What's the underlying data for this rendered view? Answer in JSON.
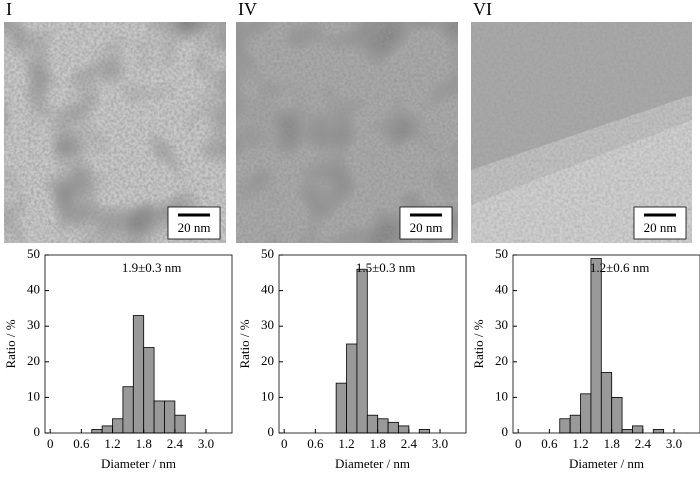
{
  "panels": [
    {
      "label": "I",
      "scale_bar": "20 nm"
    },
    {
      "label": "IV",
      "scale_bar": "20 nm"
    },
    {
      "label": "VI",
      "scale_bar": "20 nm"
    }
  ],
  "chart_data": [
    {
      "type": "histogram",
      "annotation": "1.9±0.3 nm",
      "xlabel": "Diameter / nm",
      "ylabel": "Ratio / %",
      "color": "#999999",
      "bins": [
        0.8,
        1.0,
        1.2,
        1.4,
        1.6,
        1.8,
        2.0,
        2.2,
        2.4,
        2.6
      ],
      "counts": [
        1,
        2,
        4,
        13,
        33,
        24,
        9,
        9,
        5
      ],
      "xlim": [
        -0.1,
        3.5
      ],
      "ylim": [
        0,
        50
      ],
      "xticks": [
        0,
        0.6,
        1.2,
        1.8,
        2.4,
        {
          "value": 3,
          "label": "3.0"
        }
      ],
      "yticks": [
        0,
        10,
        20,
        30,
        40,
        50
      ]
    },
    {
      "type": "histogram",
      "annotation": "1.5±0.3 nm",
      "xlabel": "Diameter / nm",
      "ylabel": "Ratio / %",
      "color": "#999999",
      "bins": [
        1.0,
        1.2,
        1.4,
        1.6,
        1.8,
        2.0,
        2.2,
        2.4,
        2.6,
        2.8
      ],
      "counts": [
        14,
        25,
        46,
        5,
        4,
        3,
        2,
        0,
        1
      ],
      "xlim": [
        -0.1,
        3.5
      ],
      "ylim": [
        0,
        50
      ],
      "xticks": [
        0,
        0.6,
        1.2,
        1.8,
        2.4,
        {
          "value": 3,
          "label": "3.0"
        }
      ],
      "yticks": [
        0,
        10,
        20,
        30,
        40,
        50
      ]
    },
    {
      "type": "histogram",
      "annotation": "1.2±0.6 nm",
      "xlabel": "Diameter / nm",
      "ylabel": "Ratio / %",
      "color": "#999999",
      "bins": [
        0.8,
        1.0,
        1.2,
        1.4,
        1.6,
        1.8,
        2.0,
        2.2,
        2.4,
        2.6,
        2.8
      ],
      "counts": [
        4,
        5,
        11,
        49,
        17,
        10,
        1,
        2,
        0,
        1
      ],
      "xlim": [
        -0.1,
        3.5
      ],
      "ylim": [
        0,
        50
      ],
      "xticks": [
        0,
        0.6,
        1.2,
        1.8,
        2.4,
        {
          "value": 3,
          "label": "3.0"
        }
      ],
      "yticks": [
        0,
        10,
        20,
        30,
        40,
        50
      ]
    }
  ]
}
